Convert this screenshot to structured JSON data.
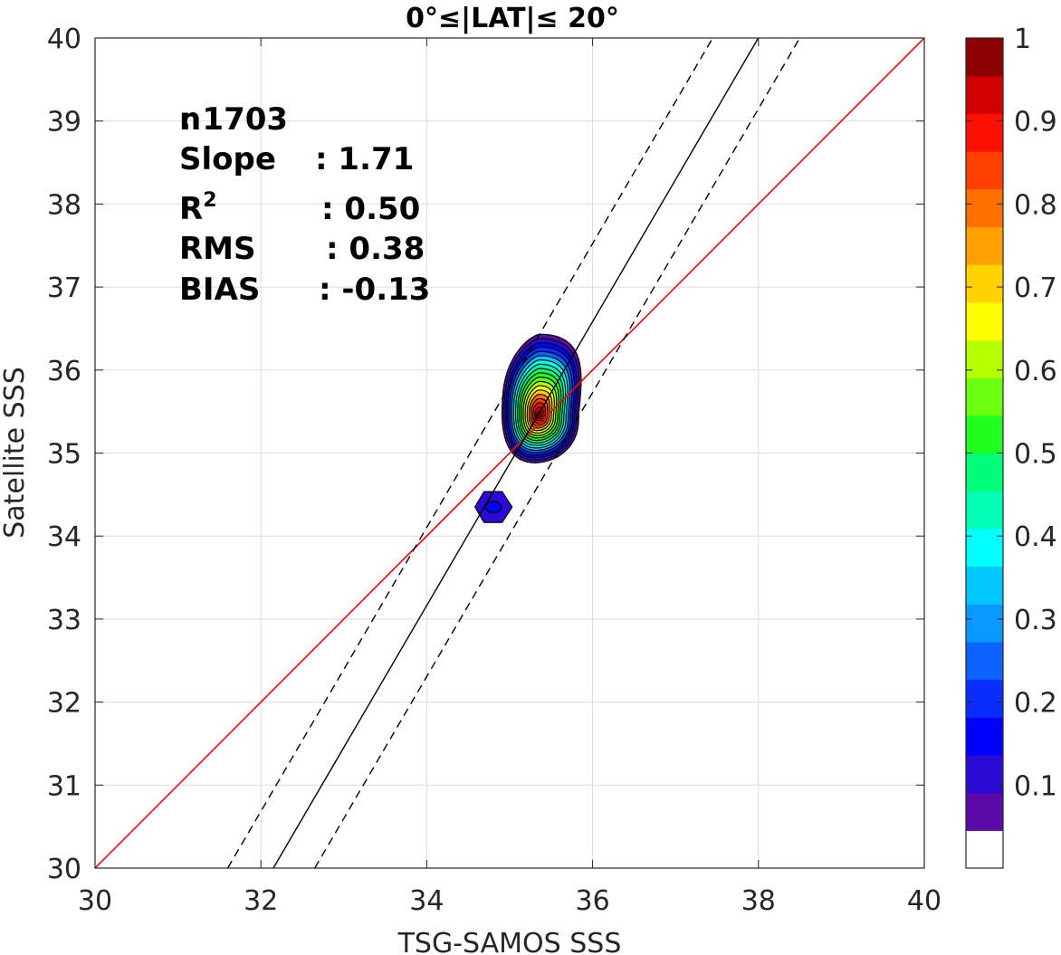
{
  "chart_data": {
    "type": "contour",
    "title": "0°≤|LAT|≤ 20°",
    "xlabel": "TSG-SAMOS SSS",
    "ylabel": "Satellite SSS",
    "xlim": [
      30,
      40
    ],
    "ylim": [
      30,
      40
    ],
    "xticks": [
      "30",
      "32",
      "34",
      "36",
      "38",
      "40"
    ],
    "yticks": [
      "30",
      "31",
      "32",
      "33",
      "34",
      "35",
      "36",
      "37",
      "38",
      "39",
      "40"
    ],
    "grid": true,
    "stats": [
      {
        "label": "n",
        "value": ": 1703"
      },
      {
        "label": "Slope",
        "value": ": 1.71"
      },
      {
        "label": "R",
        "sup": "2",
        "value": ": 0.50"
      },
      {
        "label": "RMS",
        "value": ": 0.38"
      },
      {
        "label": "BIAS",
        "value": ": -0.13"
      }
    ],
    "lines": {
      "one_to_one": {
        "color": "#ff0000",
        "slope": 1,
        "intercept": 0
      },
      "regression": {
        "color": "#000000",
        "slope": 1.71,
        "x_at_y30": 32.15,
        "style": "solid"
      },
      "regression_minus_rms": {
        "color": "#000000",
        "x_at_y30": 31.6,
        "style": "dashed"
      },
      "regression_plus_rms": {
        "color": "#000000",
        "x_at_y30": 32.65,
        "style": "dashed"
      }
    },
    "density": {
      "main_peak": {
        "x": 35.35,
        "y": 35.45,
        "levels": [
          0.1,
          0.2,
          0.3,
          0.4,
          0.5,
          0.6,
          0.7,
          0.8,
          0.9,
          1.0
        ]
      },
      "secondary": {
        "x": 34.8,
        "y": 34.35,
        "levels": [
          0.1,
          0.2
        ]
      }
    },
    "colorbar": {
      "ticks": [
        "0.1",
        "0.2",
        "0.3",
        "0.4",
        "0.5",
        "0.6",
        "0.7",
        "0.8",
        "0.9",
        "1"
      ],
      "range": [
        0,
        1
      ],
      "colors": [
        "#ffffff",
        "#5a0aa8",
        "#2a0ad6",
        "#0000ff",
        "#0a2cff",
        "#0a62ff",
        "#0a9aff",
        "#00c8ff",
        "#00ffff",
        "#00ffb4",
        "#00ff78",
        "#20ff20",
        "#6cff10",
        "#b4ff00",
        "#ffff00",
        "#ffd200",
        "#ffa000",
        "#ff7000",
        "#ff4000",
        "#ff1000",
        "#d00000",
        "#8c0000"
      ]
    }
  }
}
